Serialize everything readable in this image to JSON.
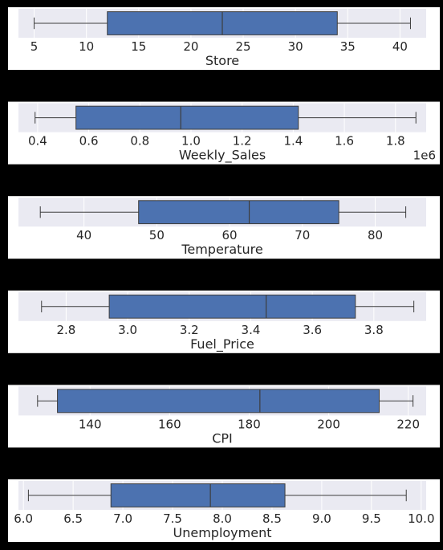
{
  "colors": {
    "figure_bg": "#000000",
    "panel_bg": "#ffffff",
    "axes_bg": "#eaeaf2",
    "box_fill": "#4c72b0",
    "line": "#3d3d3d",
    "text": "#262626"
  },
  "chart_data": [
    {
      "type": "box",
      "xlabel": "Store",
      "offset_label": "",
      "xlim": [
        3.5,
        42.5
      ],
      "ticks": [
        5,
        10,
        15,
        20,
        25,
        30,
        35,
        40
      ],
      "tick_labels": [
        "5",
        "10",
        "15",
        "20",
        "25",
        "30",
        "35",
        "40"
      ],
      "stats": {
        "whisker_low": 5,
        "q1": 12,
        "median": 23,
        "q3": 34,
        "whisker_high": 41
      },
      "grid": true
    },
    {
      "type": "box",
      "xlabel": "Weekly_Sales",
      "offset_label": "1e6",
      "xlim": [
        0.325,
        1.92
      ],
      "ticks": [
        0.4,
        0.6,
        0.8,
        1.0,
        1.2,
        1.4,
        1.6,
        1.8
      ],
      "tick_labels": [
        "0.4",
        "0.6",
        "0.8",
        "1.0",
        "1.2",
        "1.4",
        "1.6",
        "1.8"
      ],
      "stats": {
        "whisker_low": 0.39,
        "q1": 0.55,
        "median": 0.96,
        "q3": 1.42,
        "whisker_high": 1.88
      },
      "grid": true
    },
    {
      "type": "box",
      "xlabel": "Temperature",
      "offset_label": "",
      "xlim": [
        31.0,
        87.0
      ],
      "ticks": [
        40,
        50,
        60,
        70,
        80
      ],
      "tick_labels": [
        "40",
        "50",
        "60",
        "70",
        "80"
      ],
      "stats": {
        "whisker_low": 34.0,
        "q1": 47.5,
        "median": 62.7,
        "q3": 75.0,
        "whisker_high": 84.2
      },
      "grid": true
    },
    {
      "type": "box",
      "xlabel": "Fuel_Price",
      "offset_label": "",
      "xlim": [
        2.645,
        3.97
      ],
      "ticks": [
        2.8,
        3.0,
        3.2,
        3.4,
        3.6,
        3.8
      ],
      "tick_labels": [
        "2.8",
        "3.0",
        "3.2",
        "3.4",
        "3.6",
        "3.8"
      ],
      "stats": {
        "whisker_low": 2.72,
        "q1": 2.94,
        "median": 3.45,
        "q3": 3.74,
        "whisker_high": 3.93
      },
      "grid": true
    },
    {
      "type": "box",
      "xlabel": "CPI",
      "offset_label": "",
      "xlim": [
        122.0,
        224.5
      ],
      "ticks": [
        140,
        160,
        180,
        200,
        220
      ],
      "tick_labels": [
        "140",
        "160",
        "180",
        "200",
        "220"
      ],
      "stats": {
        "whisker_low": 126.8,
        "q1": 131.8,
        "median": 182.7,
        "q3": 212.7,
        "whisker_high": 221.2
      },
      "grid": true
    },
    {
      "type": "box",
      "xlabel": "Unemployment",
      "offset_label": "",
      "xlim": [
        5.95,
        10.05
      ],
      "ticks": [
        6.0,
        6.5,
        7.0,
        7.5,
        8.0,
        8.5,
        9.0,
        9.5,
        10.0
      ],
      "tick_labels": [
        "6.0",
        "6.5",
        "7.0",
        "7.5",
        "8.0",
        "8.5",
        "9.0",
        "9.5",
        "10.0"
      ],
      "stats": {
        "whisker_low": 6.05,
        "q1": 6.88,
        "median": 7.88,
        "q3": 8.63,
        "whisker_high": 9.85
      },
      "grid": true
    }
  ]
}
